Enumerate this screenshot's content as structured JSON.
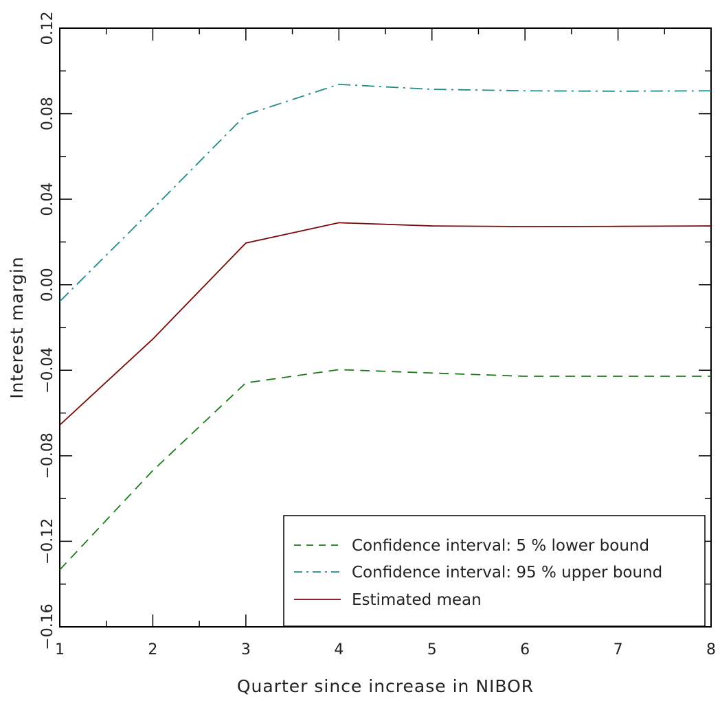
{
  "chart_data": {
    "type": "line",
    "title": "",
    "xlabel": "Quarter since increase in NIBOR",
    "ylabel": "Interest margin",
    "x": [
      1,
      2,
      3,
      4,
      5,
      6,
      7,
      8
    ],
    "xlim": [
      1,
      8
    ],
    "ylim": [
      -0.16,
      0.12
    ],
    "x_ticks": [
      "1",
      "2",
      "3",
      "4",
      "5",
      "6",
      "7",
      "8"
    ],
    "y_ticks": [
      "−0.16",
      "−0.12",
      "−0.08",
      "−0.04",
      "0.00",
      "0.04",
      "0.08",
      "0.12"
    ],
    "grid": false,
    "legend_position": "bottom-right",
    "series": [
      {
        "name": "Confidence interval: 5 % lower bound",
        "color": "#1a7a1a",
        "style": "dashed",
        "values": [
          -0.1333,
          -0.0869,
          -0.0459,
          -0.0397,
          -0.0413,
          -0.0428,
          -0.0428,
          -0.0428
        ]
      },
      {
        "name": " Confidence interval: 95 % upper bound",
        "color": "#1f8a8a",
        "style": "dashdot",
        "values": [
          -0.0078,
          0.0355,
          0.0795,
          0.0937,
          0.0914,
          0.0907,
          0.0905,
          0.0907
        ]
      },
      {
        "name": " Estimated mean",
        "color": "#7a0a0a",
        "style": "solid",
        "values": [
          -0.0656,
          -0.0254,
          0.0195,
          0.029,
          0.0275,
          0.0272,
          0.0273,
          0.0275
        ]
      }
    ]
  }
}
